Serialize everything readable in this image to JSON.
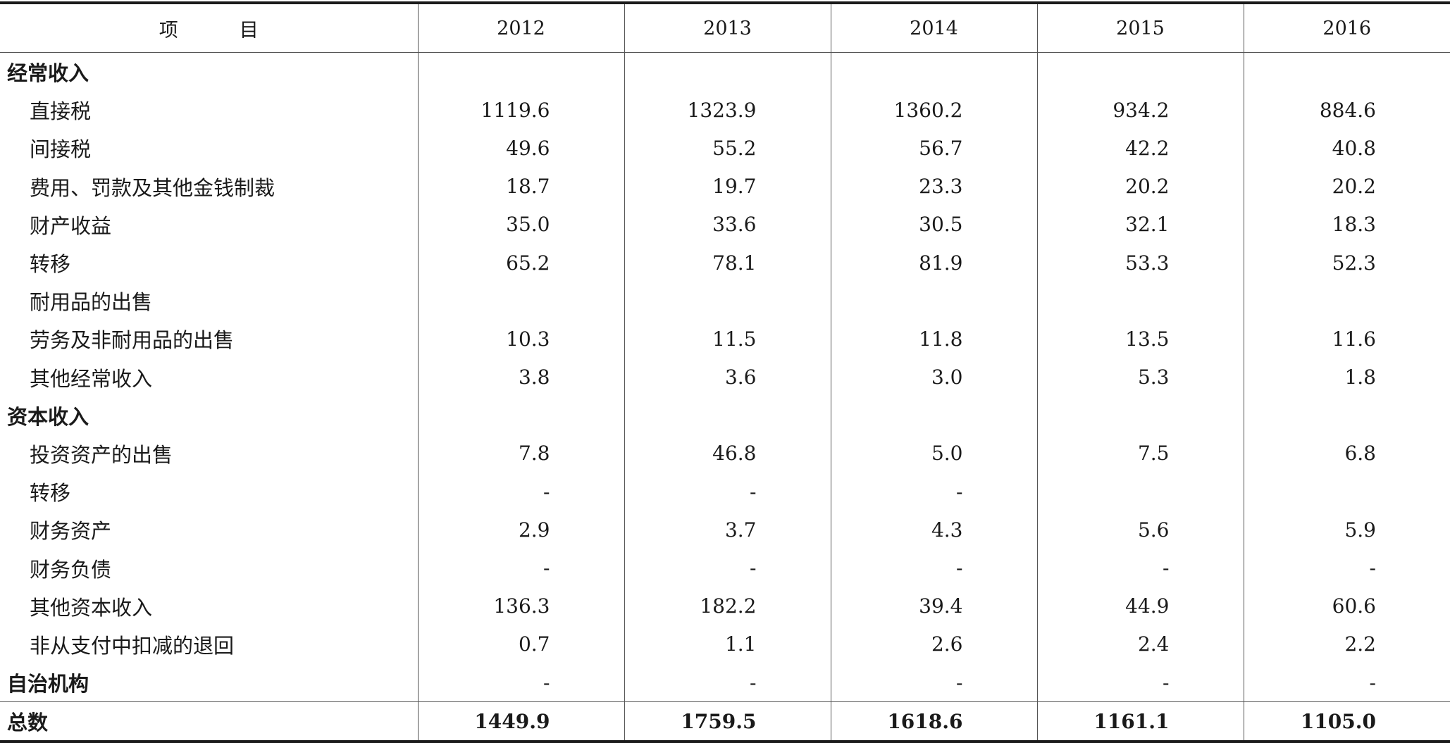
{
  "table": {
    "header": [
      "项　目",
      "2012",
      "2013",
      "2014",
      "2015",
      "2016"
    ],
    "rows": [
      {
        "label": "经常收入",
        "type": "section",
        "values": [
          "",
          "",
          "",
          "",
          ""
        ]
      },
      {
        "label": "直接税",
        "type": "child",
        "values": [
          "1119.6",
          "1323.9",
          "1360.2",
          "934.2",
          "884.6"
        ]
      },
      {
        "label": "间接税",
        "type": "child",
        "values": [
          "49.6",
          "55.2",
          "56.7",
          "42.2",
          "40.8"
        ]
      },
      {
        "label": "费用、罚款及其他金钱制裁",
        "type": "child",
        "values": [
          "18.7",
          "19.7",
          "23.3",
          "20.2",
          "20.2"
        ]
      },
      {
        "label": "财产收益",
        "type": "child",
        "values": [
          "35.0",
          "33.6",
          "30.5",
          "32.1",
          "18.3"
        ]
      },
      {
        "label": "转移",
        "type": "child",
        "values": [
          "65.2",
          "78.1",
          "81.9",
          "53.3",
          "52.3"
        ]
      },
      {
        "label": "耐用品的出售",
        "type": "child",
        "values": [
          "",
          "",
          "",
          "",
          ""
        ]
      },
      {
        "label": "劳务及非耐用品的出售",
        "type": "child",
        "values": [
          "10.3",
          "11.5",
          "11.8",
          "13.5",
          "11.6"
        ]
      },
      {
        "label": "其他经常收入",
        "type": "child",
        "values": [
          "3.8",
          "3.6",
          "3.0",
          "5.3",
          "1.8"
        ]
      },
      {
        "label": "资本收入",
        "type": "section",
        "values": [
          "",
          "",
          "",
          "",
          ""
        ]
      },
      {
        "label": "投资资产的出售",
        "type": "child",
        "values": [
          "7.8",
          "46.8",
          "5.0",
          "7.5",
          "6.8"
        ]
      },
      {
        "label": "转移",
        "type": "child",
        "values": [
          "-",
          "-",
          "-",
          "",
          ""
        ]
      },
      {
        "label": "财务资产",
        "type": "child",
        "values": [
          "2.9",
          "3.7",
          "4.3",
          "5.6",
          "5.9"
        ]
      },
      {
        "label": "财务负债",
        "type": "child",
        "values": [
          "-",
          "-",
          "-",
          "-",
          "-"
        ]
      },
      {
        "label": "其他资本收入",
        "type": "child",
        "values": [
          "136.3",
          "182.2",
          "39.4",
          "44.9",
          "60.6"
        ]
      },
      {
        "label": "非从支付中扣减的退回",
        "type": "child",
        "values": [
          "0.7",
          "1.1",
          "2.6",
          "2.4",
          "2.2"
        ]
      },
      {
        "label": "自治机构",
        "type": "section",
        "values": [
          "-",
          "-",
          "-",
          "-",
          "-"
        ]
      },
      {
        "label": "总数",
        "type": "total",
        "values": [
          "1449.9",
          "1759.5",
          "1618.6",
          "1161.1",
          "1105.0"
        ]
      }
    ]
  }
}
